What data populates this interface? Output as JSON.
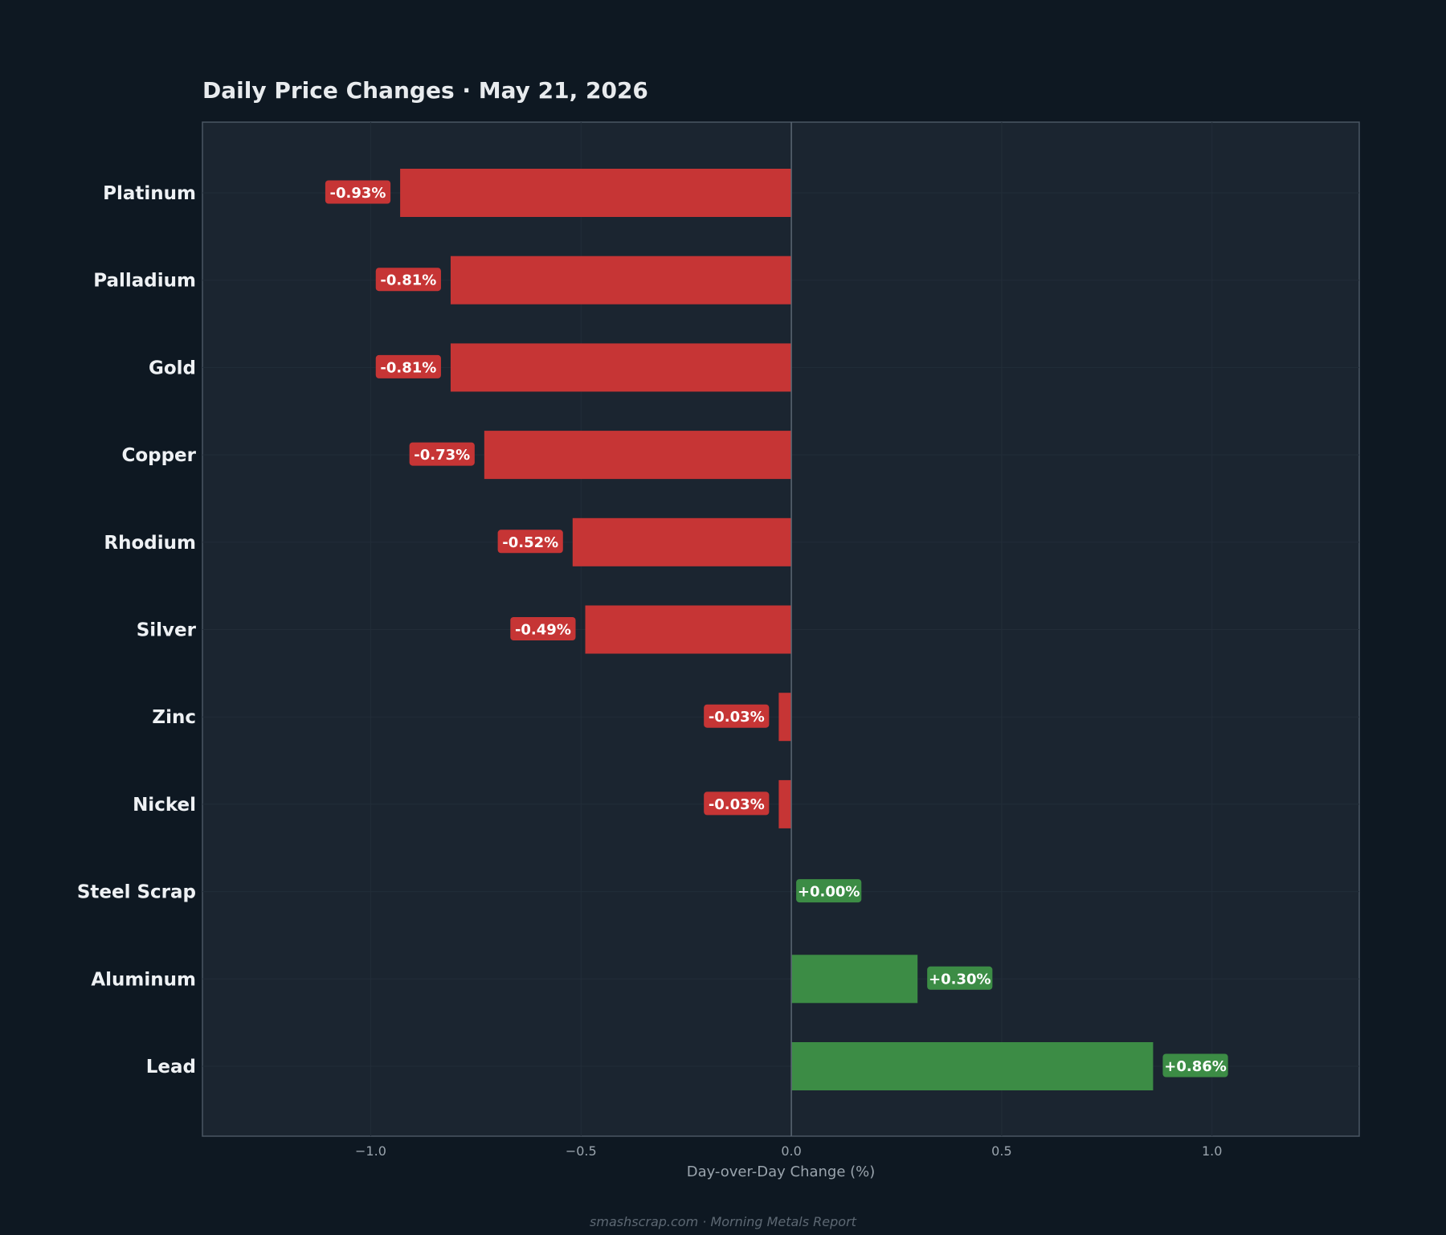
{
  "chart_data": {
    "type": "bar",
    "orientation": "horizontal",
    "title": "Daily Price Changes  ·  May 21, 2026",
    "xlabel": "Day-over-Day Change (%)",
    "ylabel": "",
    "xlim": [
      -1.4,
      1.35
    ],
    "xticks": [
      -1.0,
      -0.5,
      0.0,
      0.5,
      1.0
    ],
    "xtick_labels": [
      "−1.0",
      "−0.5",
      "0.0",
      "0.5",
      "1.0"
    ],
    "categories": [
      "Platinum",
      "Palladium",
      "Gold",
      "Copper",
      "Rhodium",
      "Silver",
      "Zinc",
      "Nickel",
      "Steel Scrap",
      "Aluminum",
      "Lead"
    ],
    "values": [
      -0.93,
      -0.81,
      -0.81,
      -0.73,
      -0.52,
      -0.49,
      -0.03,
      -0.03,
      0.0,
      0.3,
      0.86
    ],
    "value_labels": [
      "-0.93%",
      "-0.81%",
      "-0.81%",
      "-0.73%",
      "-0.52%",
      "-0.49%",
      "-0.03%",
      "-0.03%",
      "+0.00%",
      "+0.30%",
      "+0.86%"
    ],
    "colors": {
      "negative": "#c63535",
      "positive": "#3c8c45"
    },
    "grid": true,
    "legend": "none"
  },
  "footer": "smashscrap.com  ·  Morning Metals Report",
  "colors": {
    "background": "#0e1822",
    "plot_background": "#1b2530",
    "frame": "#4a5663",
    "zero_line": "#5a6774"
  }
}
